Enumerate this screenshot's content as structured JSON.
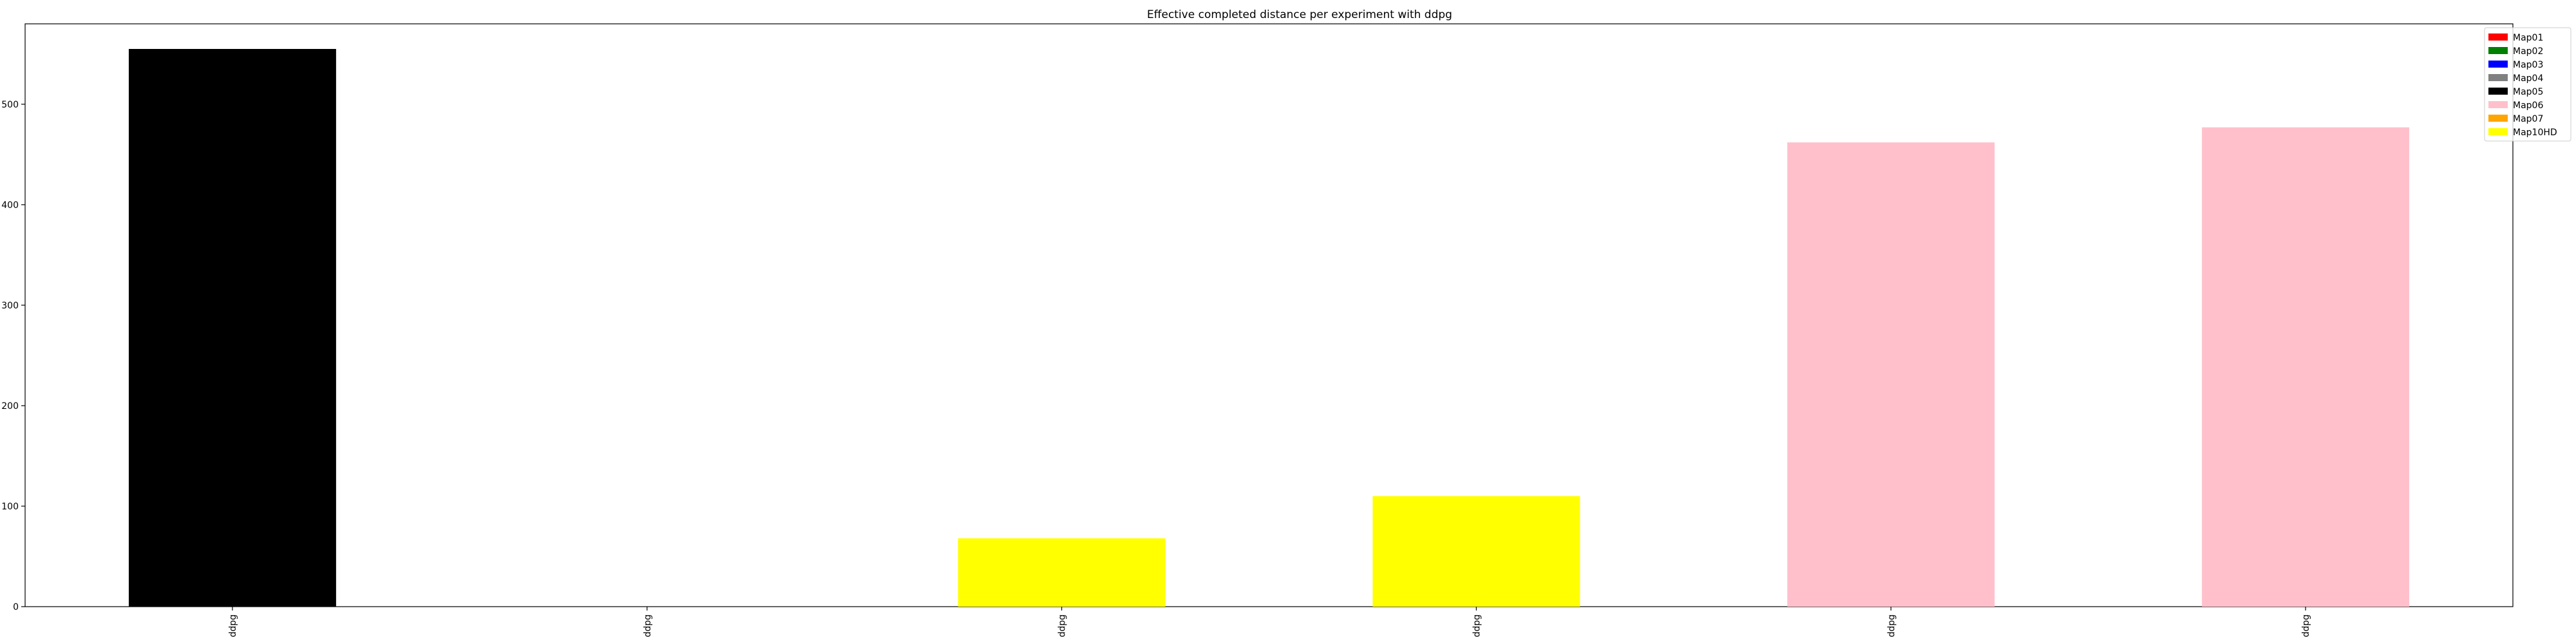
{
  "chart_data": {
    "type": "bar",
    "title": "Effective completed distance per experiment with ddpg",
    "xlabel": "",
    "ylabel": "",
    "categories": [
      "ddpg",
      "ddpg",
      "ddpg",
      "ddpg",
      "ddpg",
      "ddpg"
    ],
    "values": [
      555,
      0,
      68,
      110,
      462,
      477
    ],
    "bar_maps": [
      "Map05",
      "Map01",
      "Map10HD",
      "Map10HD",
      "Map06",
      "Map06"
    ],
    "ylim": [
      0,
      580
    ],
    "yticks": [
      0,
      100,
      200,
      300,
      400,
      500
    ],
    "grid": false,
    "legend_position": "top-right",
    "legend": [
      {
        "name": "Map01",
        "color": "#ff0000"
      },
      {
        "name": "Map02",
        "color": "#008000"
      },
      {
        "name": "Map03",
        "color": "#0000ff"
      },
      {
        "name": "Map04",
        "color": "#808080"
      },
      {
        "name": "Map05",
        "color": "#000000"
      },
      {
        "name": "Map06",
        "color": "#ffc0cb"
      },
      {
        "name": "Map07",
        "color": "#ffa500"
      },
      {
        "name": "Map10HD",
        "color": "#ffff00"
      }
    ]
  }
}
